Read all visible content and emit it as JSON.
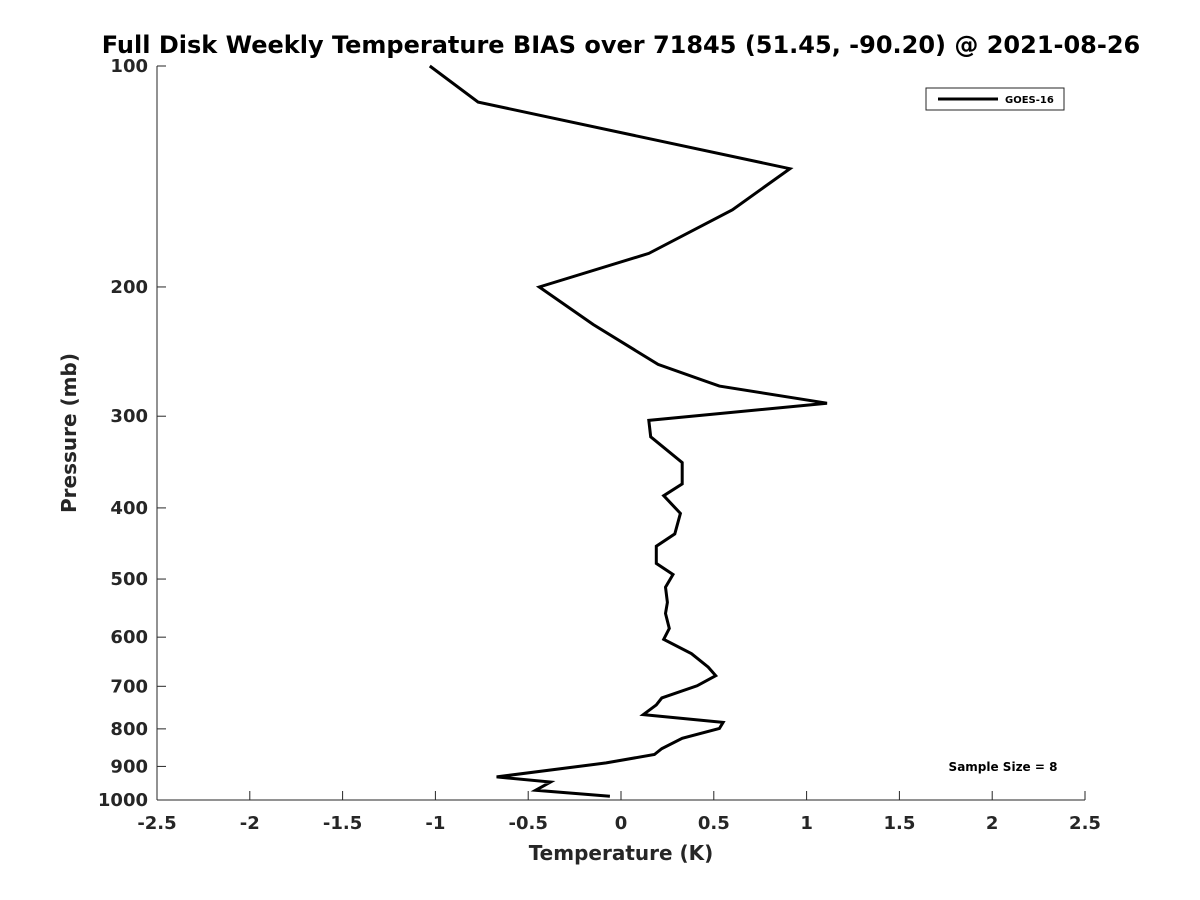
{
  "chart_data": {
    "type": "line",
    "title": "Full Disk Weekly Temperature BIAS over 71845 (51.45, -90.20) @ 2021-08-26",
    "xlabel": "Temperature (K)",
    "ylabel": "Pressure (mb)",
    "xlim": [
      -2.5,
      2.5
    ],
    "ylim": [
      100,
      1000
    ],
    "y_scale": "log",
    "y_reversed": true,
    "grid": false,
    "legend_position": "top-right",
    "x_ticks": [
      -2.5,
      -2,
      -1.5,
      -1,
      -0.5,
      0,
      0.5,
      1,
      1.5,
      2,
      2.5
    ],
    "x_tick_labels": [
      "-2.5",
      "-2",
      "-1.5",
      "-1",
      "-0.5",
      "0",
      "0.5",
      "1",
      "1.5",
      "2",
      "2.5"
    ],
    "y_ticks": [
      100,
      200,
      300,
      400,
      500,
      600,
      700,
      800,
      900,
      1000
    ],
    "y_tick_labels": [
      "100",
      "200",
      "300",
      "400",
      "500",
      "600",
      "700",
      "800",
      "900",
      "1000"
    ],
    "series": [
      {
        "name": "GOES-16",
        "color": "#000000",
        "x": [
          -1.03,
          -0.77,
          0.91,
          0.6,
          0.15,
          -0.44,
          -0.15,
          0.2,
          0.53,
          1.11,
          0.15,
          0.16,
          0.33,
          0.33,
          0.23,
          0.32,
          0.29,
          0.19,
          0.19,
          0.28,
          0.24,
          0.25,
          0.24,
          0.26,
          0.23,
          0.38,
          0.47,
          0.51,
          0.41,
          0.22,
          0.19,
          0.12,
          0.55,
          0.53,
          0.33,
          0.22,
          0.18,
          -0.08,
          -0.67,
          -0.38,
          -0.46,
          -0.06
        ],
        "y": [
          100,
          112,
          138,
          157,
          180,
          200,
          225,
          255,
          273,
          288,
          304,
          320,
          347,
          371,
          385,
          407,
          434,
          451,
          476,
          493,
          513,
          538,
          557,
          584,
          604,
          632,
          659,
          677,
          699,
          726,
          742,
          765,
          784,
          799,
          824,
          851,
          867,
          890,
          930,
          945,
          970,
          988
        ]
      }
    ],
    "annotations": [
      {
        "text": "Sample Size = 8"
      }
    ]
  }
}
